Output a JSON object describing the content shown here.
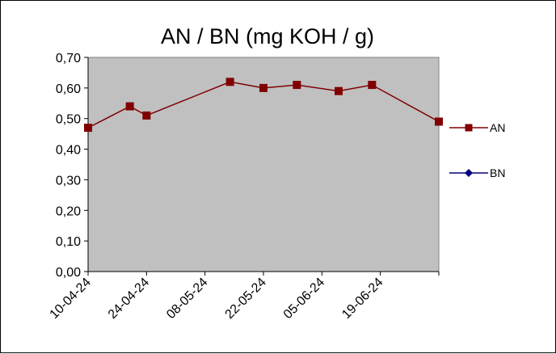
{
  "chart_data": {
    "type": "line",
    "title": "AN / BN (mg KOH / g)",
    "xlabel": "",
    "ylabel": "",
    "x_tick_labels": [
      "10-04-24",
      "24-04-24",
      "08-05-24",
      "22-05-24",
      "05-06-24",
      "19-06-24"
    ],
    "y_tick_labels": [
      "0,00",
      "0,10",
      "0,20",
      "0,30",
      "0,40",
      "0,50",
      "0,60",
      "0,70"
    ],
    "xlim": [
      "2024-04-10",
      "2024-07-03"
    ],
    "ylim": [
      0,
      0.7
    ],
    "y_tick_step": 0.1,
    "grid": false,
    "plot_background": "#c0c0c0",
    "legend_position": "right",
    "series": [
      {
        "name": "AN",
        "color": "#800000",
        "marker": "square",
        "points": [
          {
            "x": "2024-04-10",
            "y": 0.47
          },
          {
            "x": "2024-04-20",
            "y": 0.54
          },
          {
            "x": "2024-04-24",
            "y": 0.51
          },
          {
            "x": "2024-05-14",
            "y": 0.62
          },
          {
            "x": "2024-05-22",
            "y": 0.6
          },
          {
            "x": "2024-05-30",
            "y": 0.61
          },
          {
            "x": "2024-06-09",
            "y": 0.59
          },
          {
            "x": "2024-06-17",
            "y": 0.61
          },
          {
            "x": "2024-07-03",
            "y": 0.49
          }
        ]
      },
      {
        "name": "BN",
        "color": "#000080",
        "marker": "diamond",
        "points": []
      }
    ]
  }
}
